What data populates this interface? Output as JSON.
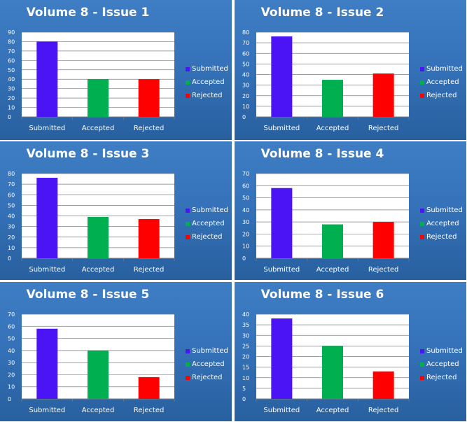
{
  "colors": {
    "submitted": "#4a14f5",
    "accepted": "#00b050",
    "rejected": "#ff0000",
    "panel_background": "#3572b9",
    "plot_background": "#ffffff"
  },
  "chart_data": [
    {
      "type": "bar",
      "title": "Volume 8 - Issue 1",
      "categories": [
        "Submitted",
        "Accepted",
        "Rejected"
      ],
      "values": [
        80,
        40,
        40
      ],
      "ylim": [
        0,
        90
      ],
      "yticks": [
        0,
        10,
        20,
        30,
        40,
        50,
        60,
        70,
        80,
        90
      ],
      "legend": [
        "Submitted",
        "Accepted",
        "Rejected"
      ],
      "legend_position": "right",
      "grid": true
    },
    {
      "type": "bar",
      "title": "Volume 8 - Issue 2",
      "categories": [
        "Submitted",
        "Accepted",
        "Rejected"
      ],
      "values": [
        76,
        35,
        41
      ],
      "ylim": [
        0,
        80
      ],
      "yticks": [
        0,
        10,
        20,
        30,
        40,
        50,
        60,
        70,
        80
      ],
      "legend": [
        "Submitted",
        "Accepted",
        "Rejected"
      ],
      "legend_position": "right",
      "grid": true
    },
    {
      "type": "bar",
      "title": "Volume 8 - Issue 3",
      "categories": [
        "Submitted",
        "Accepted",
        "Rejected"
      ],
      "values": [
        76,
        39,
        37
      ],
      "ylim": [
        0,
        80
      ],
      "yticks": [
        0,
        10,
        20,
        30,
        40,
        50,
        60,
        70,
        80
      ],
      "legend": [
        "Submitted",
        "Accepted",
        "Rejected"
      ],
      "legend_position": "right",
      "grid": true
    },
    {
      "type": "bar",
      "title": "Volume 8 - Issue 4",
      "categories": [
        "Submitted",
        "Accepted",
        "Rejected"
      ],
      "values": [
        58,
        28,
        30
      ],
      "ylim": [
        0,
        70
      ],
      "yticks": [
        0,
        10,
        20,
        30,
        40,
        50,
        60,
        70
      ],
      "legend": [
        "Submitted",
        "Accepted",
        "Rejected"
      ],
      "legend_position": "right",
      "grid": true
    },
    {
      "type": "bar",
      "title": "Volume 8 - Issue 5",
      "categories": [
        "Submitted",
        "Accepted",
        "Rejected"
      ],
      "values": [
        58,
        40,
        18
      ],
      "ylim": [
        0,
        70
      ],
      "yticks": [
        0,
        10,
        20,
        30,
        40,
        50,
        60,
        70
      ],
      "legend": [
        "Submitted",
        "Accepted",
        "Rejected"
      ],
      "legend_position": "right",
      "grid": true
    },
    {
      "type": "bar",
      "title": "Volume 8 - Issue 6",
      "categories": [
        "Submitted",
        "Accepted",
        "Rejected"
      ],
      "values": [
        38,
        25,
        13
      ],
      "ylim": [
        0,
        40
      ],
      "yticks": [
        0,
        5,
        10,
        15,
        20,
        25,
        30,
        35,
        40
      ],
      "legend": [
        "Submitted",
        "Accepted",
        "Rejected"
      ],
      "legend_position": "right",
      "grid": true
    }
  ]
}
